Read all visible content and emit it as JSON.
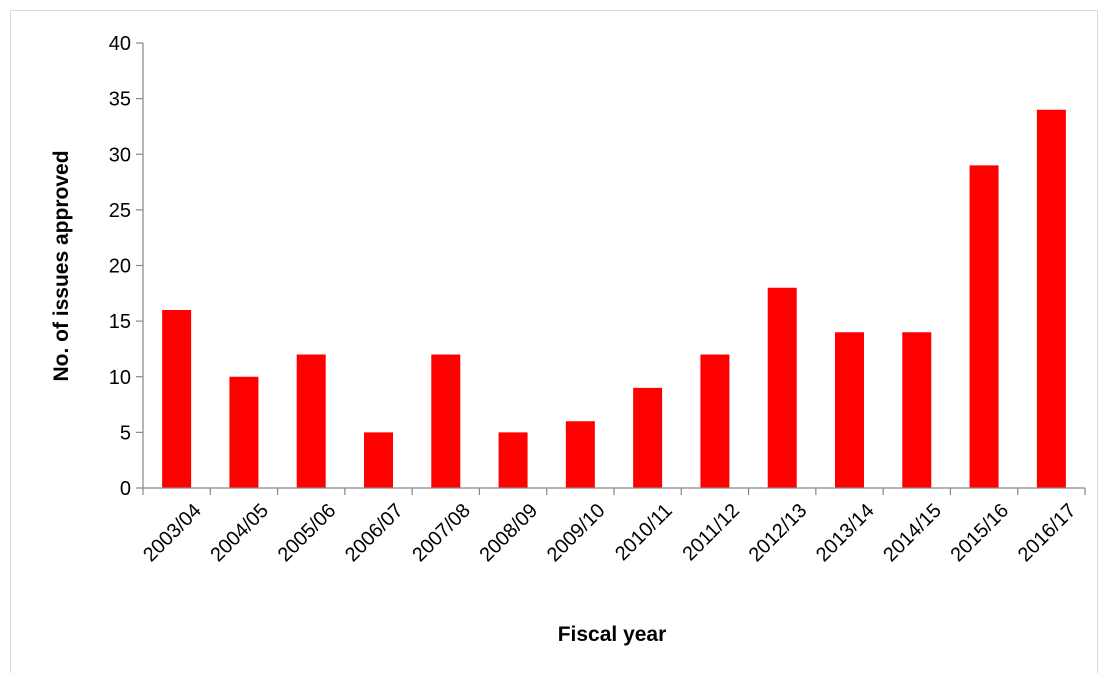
{
  "chart_data": {
    "type": "bar",
    "title": "",
    "xlabel": "Fiscal year",
    "ylabel": "No. of issues approved",
    "categories": [
      "2003/04",
      "2004/05",
      "2005/06",
      "2006/07",
      "2007/08",
      "2008/09",
      "2009/10",
      "2010/11",
      "2011/12",
      "2012/13",
      "2013/14",
      "2014/15",
      "2015/16",
      "2016/17"
    ],
    "values": [
      16,
      10,
      12,
      5,
      12,
      5,
      6,
      9,
      12,
      18,
      14,
      14,
      29,
      34
    ],
    "ylim": [
      0,
      40
    ],
    "yticks": [
      0,
      5,
      10,
      15,
      20,
      25,
      30,
      35,
      40
    ],
    "grid": false,
    "legend": "none",
    "bar_color": "#ff0000"
  }
}
